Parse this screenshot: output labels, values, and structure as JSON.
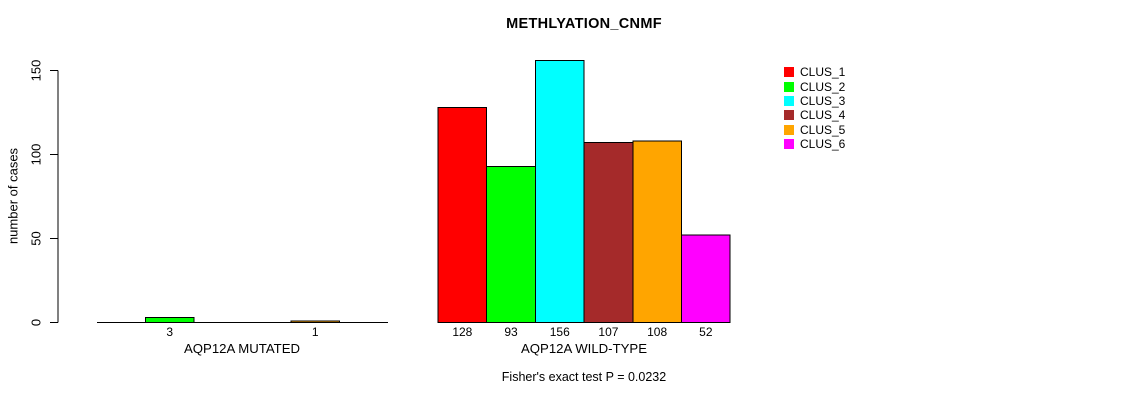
{
  "chart_data": {
    "type": "bar",
    "title": "METHLYATION_CNMF",
    "ylabel": "number of cases",
    "xlabel": "",
    "ylim": [
      0,
      150
    ],
    "yticks": [
      0,
      50,
      100,
      150
    ],
    "grid": false,
    "bar_gap": 0,
    "legend_position": "right",
    "categories": [
      "CLUS_1",
      "CLUS_2",
      "CLUS_3",
      "CLUS_4",
      "CLUS_5",
      "CLUS_6"
    ],
    "colors": [
      "#FF0000",
      "#00FF00",
      "#00FFFF",
      "#A52A2A",
      "#FFA500",
      "#FF00FF"
    ],
    "groups": [
      {
        "label": "AQP12A MUTATED",
        "values": [
          0,
          3,
          0,
          0,
          1,
          0
        ],
        "value_labels": [
          "",
          "3",
          "",
          "",
          "1",
          ""
        ]
      },
      {
        "label": "AQP12A WILD-TYPE",
        "values": [
          128,
          93,
          156,
          107,
          108,
          52
        ],
        "value_labels": [
          "128",
          "93",
          "156",
          "107",
          "108",
          "52"
        ]
      }
    ],
    "footnote": "Fisher's exact test P = 0.0232"
  }
}
